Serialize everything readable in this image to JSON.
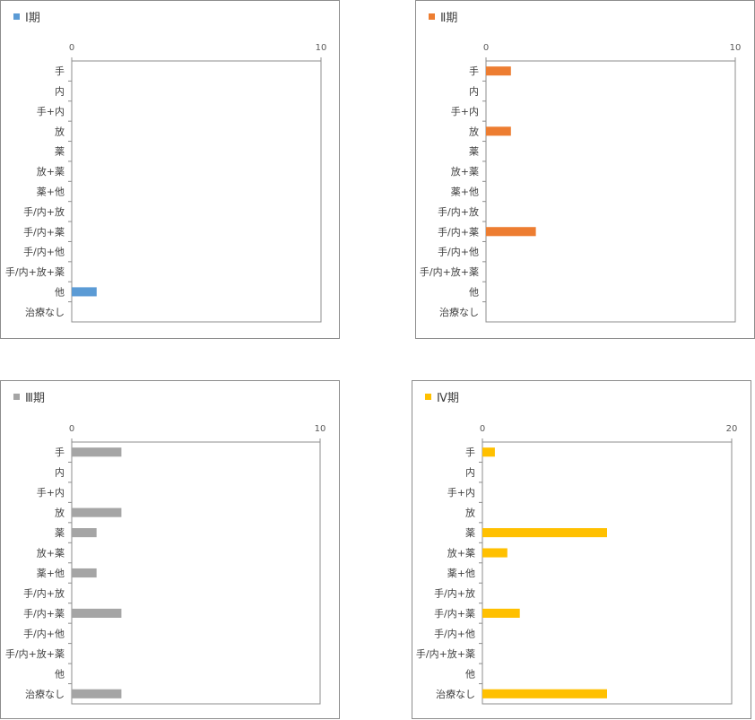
{
  "chart_data": [
    {
      "type": "bar",
      "legend": "Ⅰ期",
      "color": "#5b9bd5",
      "xlim": [
        0,
        10
      ],
      "xticks": [
        "0",
        "10"
      ],
      "categories": [
        "手",
        "内",
        "手+内",
        "放",
        "薬",
        "放+薬",
        "薬+他",
        "手/内+放",
        "手/内+薬",
        "手/内+他",
        "手/内+放+薬",
        "他",
        "治療なし"
      ],
      "values": [
        0,
        0,
        0,
        0,
        0,
        0,
        0,
        0,
        0,
        0,
        0,
        1,
        0
      ]
    },
    {
      "type": "bar",
      "legend": "Ⅱ期",
      "color": "#ed7d31",
      "xlim": [
        0,
        10
      ],
      "xticks": [
        "0",
        "10"
      ],
      "categories": [
        "手",
        "内",
        "手+内",
        "放",
        "薬",
        "放+薬",
        "薬+他",
        "手/内+放",
        "手/内+薬",
        "手/内+他",
        "手/内+放+薬",
        "他",
        "治療なし"
      ],
      "values": [
        1,
        0,
        0,
        1,
        0,
        0,
        0,
        0,
        2,
        0,
        0,
        0,
        0
      ]
    },
    {
      "type": "bar",
      "legend": "Ⅲ期",
      "color": "#a5a5a5",
      "xlim": [
        0,
        10
      ],
      "xticks": [
        "0",
        "10"
      ],
      "categories": [
        "手",
        "内",
        "手+内",
        "放",
        "薬",
        "放+薬",
        "薬+他",
        "手/内+放",
        "手/内+薬",
        "手/内+他",
        "手/内+放+薬",
        "他",
        "治療なし"
      ],
      "values": [
        2,
        0,
        0,
        2,
        1,
        0,
        1,
        0,
        2,
        0,
        0,
        0,
        2
      ]
    },
    {
      "type": "bar",
      "legend": "Ⅳ期",
      "color": "#ffc000",
      "xlim": [
        0,
        20
      ],
      "xticks": [
        "0",
        "20"
      ],
      "categories": [
        "手",
        "内",
        "手+内",
        "放",
        "薬",
        "放+薬",
        "薬+他",
        "手/内+放",
        "手/内+薬",
        "手/内+他",
        "手/内+放+薬",
        "他",
        "治療なし"
      ],
      "values": [
        1,
        0,
        0,
        0,
        10,
        2,
        0,
        0,
        3,
        0,
        0,
        0,
        10
      ]
    }
  ]
}
